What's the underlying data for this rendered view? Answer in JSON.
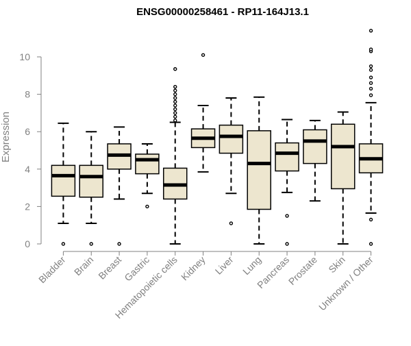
{
  "chart_data": {
    "type": "boxplot",
    "title": "ENSG00000258461 - RP11-164J13.1",
    "xlabel": "",
    "ylabel": "Expression",
    "ylim": [
      0,
      11.4
    ],
    "yticks": [
      0,
      2,
      4,
      6,
      8,
      10
    ],
    "grid": false,
    "colors": {
      "box_fill": "#ede6cf",
      "stroke": "#000000",
      "axis_text": "#808080",
      "axis_line": "#808080",
      "title": "#000000"
    },
    "categories": [
      "Bladder",
      "Brain",
      "Breast",
      "Gastric",
      "Hematopoietic cells",
      "Kidney",
      "Liver",
      "Lung",
      "Pancreas",
      "Prostate",
      "Skin",
      "Unknown / Other"
    ],
    "boxes": [
      {
        "category": "Bladder",
        "whisker_low": 1.1,
        "q1": 2.55,
        "median": 3.65,
        "q3": 4.2,
        "whisker_high": 6.45,
        "outliers": [
          0.0
        ]
      },
      {
        "category": "Brain",
        "whisker_low": 1.1,
        "q1": 2.5,
        "median": 3.6,
        "q3": 4.2,
        "whisker_high": 6.0,
        "outliers": [
          0.0
        ]
      },
      {
        "category": "Breast",
        "whisker_low": 2.4,
        "q1": 4.0,
        "median": 4.75,
        "q3": 5.35,
        "whisker_high": 6.25,
        "outliers": [
          0.0
        ]
      },
      {
        "category": "Gastric",
        "whisker_low": 2.7,
        "q1": 3.75,
        "median": 4.5,
        "q3": 4.8,
        "whisker_high": 5.35,
        "outliers": [
          2.0
        ]
      },
      {
        "category": "Hematopoietic cells",
        "whisker_low": 0.0,
        "q1": 2.4,
        "median": 3.15,
        "q3": 4.05,
        "whisker_high": 6.5,
        "outliers": [
          6.6,
          6.8,
          7.0,
          7.2,
          7.4,
          7.6,
          7.8,
          8.0,
          8.2,
          8.4,
          9.35
        ]
      },
      {
        "category": "Kidney",
        "whisker_low": 3.85,
        "q1": 5.15,
        "median": 5.65,
        "q3": 6.15,
        "whisker_high": 7.4,
        "outliers": [
          10.1
        ]
      },
      {
        "category": "Liver",
        "whisker_low": 2.7,
        "q1": 4.85,
        "median": 5.75,
        "q3": 6.35,
        "whisker_high": 7.8,
        "outliers": [
          1.1
        ]
      },
      {
        "category": "Lung",
        "whisker_low": 0.0,
        "q1": 1.85,
        "median": 4.3,
        "q3": 6.05,
        "whisker_high": 7.85,
        "outliers": []
      },
      {
        "category": "Pancreas",
        "whisker_low": 2.75,
        "q1": 3.9,
        "median": 4.85,
        "q3": 5.4,
        "whisker_high": 6.65,
        "outliers": [
          0.0,
          1.5
        ]
      },
      {
        "category": "Prostate",
        "whisker_low": 2.3,
        "q1": 4.3,
        "median": 5.5,
        "q3": 6.1,
        "whisker_high": 6.6,
        "outliers": []
      },
      {
        "category": "Skin",
        "whisker_low": 0.0,
        "q1": 2.95,
        "median": 5.2,
        "q3": 6.4,
        "whisker_high": 7.05,
        "outliers": []
      },
      {
        "category": "Unknown / Other",
        "whisker_low": 1.65,
        "q1": 3.8,
        "median": 4.55,
        "q3": 5.35,
        "whisker_high": 7.55,
        "outliers": [
          0.0,
          1.3,
          7.95,
          8.3,
          8.6,
          8.9,
          9.3,
          9.5,
          10.3,
          10.4,
          11.4
        ]
      }
    ]
  }
}
